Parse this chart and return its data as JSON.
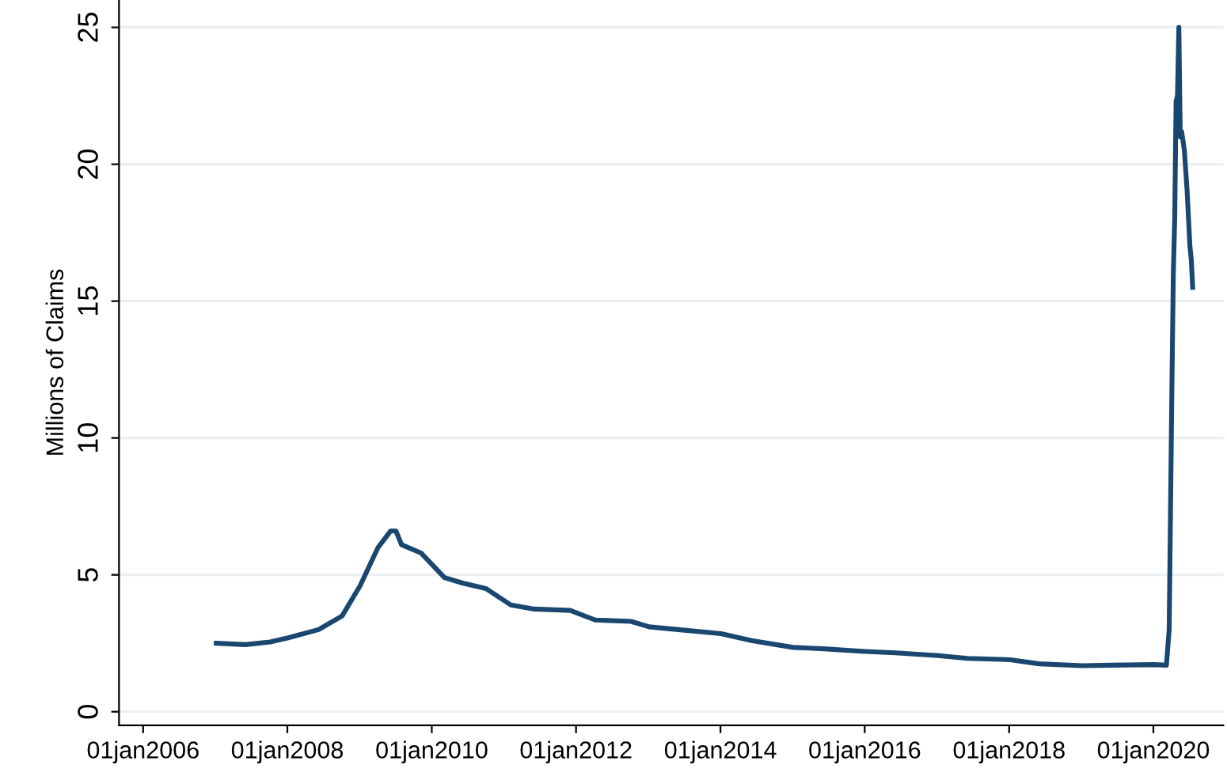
{
  "chart_data": {
    "type": "line",
    "ylabel": "Millions of Claims",
    "grid": "y",
    "legend": false,
    "line_style": "solid",
    "marker": "none",
    "xlim": [
      "2005-09-01",
      "2020-12-20"
    ],
    "ylim": [
      -0.5,
      26
    ],
    "xticks": [
      {
        "value": "2006-01-01",
        "label": "01jan2006"
      },
      {
        "value": "2008-01-01",
        "label": "01jan2008"
      },
      {
        "value": "2010-01-01",
        "label": "01jan2010"
      },
      {
        "value": "2012-01-01",
        "label": "01jan2012"
      },
      {
        "value": "2014-01-01",
        "label": "01jan2014"
      },
      {
        "value": "2016-01-01",
        "label": "01jan2016"
      },
      {
        "value": "2018-01-01",
        "label": "01jan2018"
      },
      {
        "value": "2020-01-01",
        "label": "01jan2020"
      }
    ],
    "yticks": [
      0,
      5,
      10,
      15,
      20,
      25
    ],
    "x": [
      "2007-01-06",
      "2007-06-02",
      "2007-10-06",
      "2008-01-05",
      "2008-06-07",
      "2008-10-04",
      "2009-01-03",
      "2009-04-04",
      "2009-06-06",
      "2009-07-04",
      "2009-08-01",
      "2009-11-07",
      "2010-03-06",
      "2010-06-05",
      "2010-10-02",
      "2011-02-05",
      "2011-06-04",
      "2011-12-03",
      "2012-04-07",
      "2012-10-06",
      "2013-01-05",
      "2013-06-01",
      "2014-01-04",
      "2014-06-07",
      "2015-01-03",
      "2015-06-06",
      "2016-01-02",
      "2016-06-04",
      "2017-01-07",
      "2017-06-03",
      "2018-01-06",
      "2018-06-02",
      "2019-01-05",
      "2019-06-01",
      "2020-01-04",
      "2020-03-07",
      "2020-03-21",
      "2020-03-28",
      "2020-04-04",
      "2020-04-11",
      "2020-04-18",
      "2020-04-25",
      "2020-05-02",
      "2020-05-09",
      "2020-05-16",
      "2020-05-23",
      "2020-06-06",
      "2020-06-20",
      "2020-07-04",
      "2020-07-11",
      "2020-07-18"
    ],
    "series": [
      {
        "color": "#1a476f",
        "values": [
          2.5,
          2.45,
          2.55,
          2.7,
          3.0,
          3.5,
          4.6,
          6.0,
          6.6,
          6.6,
          6.1,
          5.8,
          4.9,
          4.7,
          4.5,
          3.9,
          3.75,
          3.7,
          3.35,
          3.3,
          3.1,
          3.0,
          2.85,
          2.6,
          2.35,
          2.3,
          2.2,
          2.15,
          2.05,
          1.95,
          1.9,
          1.75,
          1.68,
          1.7,
          1.72,
          1.7,
          3.0,
          7.5,
          12,
          16,
          18,
          22.3,
          22.5,
          25,
          21,
          21.2,
          20.5,
          19,
          17,
          16.5,
          15.5
        ]
      }
    ]
  }
}
